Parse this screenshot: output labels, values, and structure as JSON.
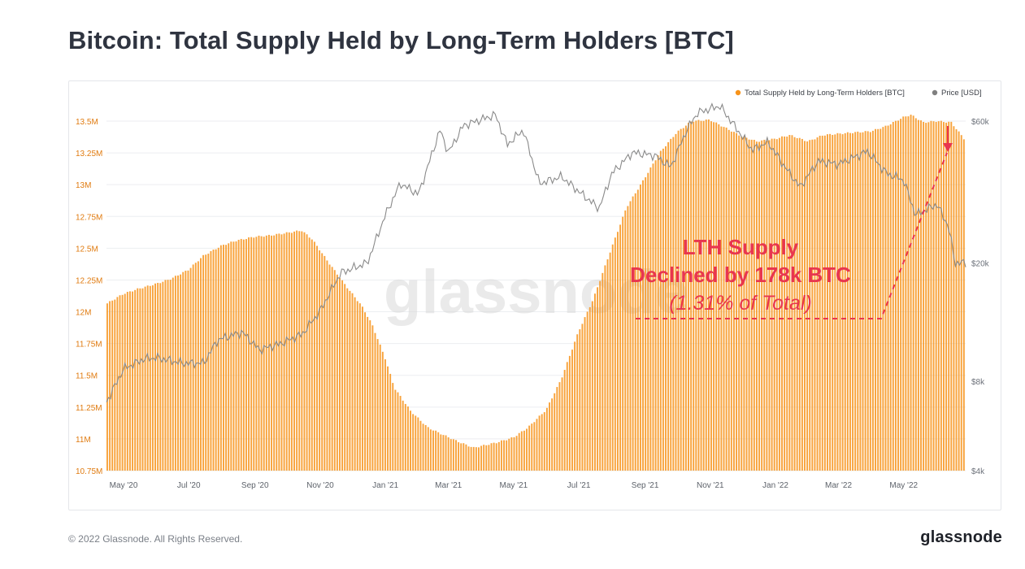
{
  "page": {
    "title": "Bitcoin: Total Supply Held by Long-Term Holders [BTC]",
    "footer": "© 2022 Glassnode. All Rights Reserved.",
    "logo": "glassnode"
  },
  "chart_data": {
    "type": "bar",
    "title": "Bitcoin: Total Supply Held by Long-Term Holders [BTC]",
    "watermark": "glassnode",
    "legend_position": "top-right",
    "grid": true,
    "colors": {
      "supply": "#f7931a",
      "price": "#7f7f7f",
      "annotation": "#e8364f",
      "text_left_axis": "#e07b10"
    },
    "x_axis": {
      "ticks": [
        "May '20",
        "Jul '20",
        "Sep '20",
        "Nov '20",
        "Jan '21",
        "Mar '21",
        "May '21",
        "Jul '21",
        "Sep '21",
        "Nov '21",
        "Jan '22",
        "Mar '22",
        "May '22"
      ],
      "range": [
        "2020-04-15",
        "2022-06-28"
      ]
    },
    "y_left": {
      "ticks": [
        "10.75M",
        "11M",
        "11.25M",
        "11.5M",
        "11.75M",
        "12M",
        "12.25M",
        "12.5M",
        "12.75M",
        "13M",
        "13.25M",
        "13.5M"
      ],
      "range": [
        10.75,
        13.5
      ],
      "unit": "M BTC"
    },
    "y_right": {
      "ticks": [
        "$4k",
        "$8k",
        "$20k",
        "$60k"
      ],
      "scale": "log",
      "range": [
        4000,
        60000
      ]
    },
    "series": [
      {
        "name": "Total Supply Held by Long-Term Holders [BTC]",
        "kind": "bar",
        "axis": "left",
        "points": [
          [
            "2020-04-15",
            12.06
          ],
          [
            "2020-05-01",
            12.14
          ],
          [
            "2020-05-15",
            12.18
          ],
          [
            "2020-06-01",
            12.22
          ],
          [
            "2020-06-15",
            12.26
          ],
          [
            "2020-07-01",
            12.33
          ],
          [
            "2020-07-15",
            12.44
          ],
          [
            "2020-08-01",
            12.52
          ],
          [
            "2020-08-15",
            12.56
          ],
          [
            "2020-09-01",
            12.59
          ],
          [
            "2020-09-15",
            12.6
          ],
          [
            "2020-10-01",
            12.62
          ],
          [
            "2020-10-15",
            12.64
          ],
          [
            "2020-10-25",
            12.57
          ],
          [
            "2020-11-10",
            12.38
          ],
          [
            "2020-11-25",
            12.21
          ],
          [
            "2020-12-10",
            12.05
          ],
          [
            "2020-12-20",
            11.9
          ],
          [
            "2021-01-01",
            11.64
          ],
          [
            "2021-01-10",
            11.4
          ],
          [
            "2021-01-25",
            11.22
          ],
          [
            "2021-02-10",
            11.09
          ],
          [
            "2021-02-25",
            11.03
          ],
          [
            "2021-03-10",
            10.98
          ],
          [
            "2021-03-25",
            10.93
          ],
          [
            "2021-04-15",
            10.97
          ],
          [
            "2021-05-01",
            11.01
          ],
          [
            "2021-05-15",
            11.09
          ],
          [
            "2021-06-01",
            11.23
          ],
          [
            "2021-06-15",
            11.47
          ],
          [
            "2021-07-01",
            11.84
          ],
          [
            "2021-07-15",
            12.1
          ],
          [
            "2021-08-01",
            12.5
          ],
          [
            "2021-08-15",
            12.82
          ],
          [
            "2021-09-01",
            13.05
          ],
          [
            "2021-09-15",
            13.25
          ],
          [
            "2021-10-01",
            13.41
          ],
          [
            "2021-10-15",
            13.5
          ],
          [
            "2021-11-01",
            13.51
          ],
          [
            "2021-11-15",
            13.45
          ],
          [
            "2021-12-01",
            13.38
          ],
          [
            "2021-12-15",
            13.34
          ],
          [
            "2022-01-01",
            13.36
          ],
          [
            "2022-01-15",
            13.39
          ],
          [
            "2022-02-01",
            13.34
          ],
          [
            "2022-02-15",
            13.39
          ],
          [
            "2022-03-01",
            13.4
          ],
          [
            "2022-03-15",
            13.41
          ],
          [
            "2022-04-01",
            13.42
          ],
          [
            "2022-04-15",
            13.46
          ],
          [
            "2022-05-01",
            13.53
          ],
          [
            "2022-05-08",
            13.55
          ],
          [
            "2022-05-20",
            13.49
          ],
          [
            "2022-06-01",
            13.5
          ],
          [
            "2022-06-15",
            13.49
          ],
          [
            "2022-06-28",
            13.35
          ]
        ]
      },
      {
        "name": "Price [USD]",
        "kind": "line",
        "axis": "right",
        "points": [
          [
            "2020-04-15",
            6800
          ],
          [
            "2020-05-01",
            8800
          ],
          [
            "2020-05-20",
            9500
          ],
          [
            "2020-06-01",
            9600
          ],
          [
            "2020-06-25",
            9200
          ],
          [
            "2020-07-15",
            9200
          ],
          [
            "2020-07-28",
            11000
          ],
          [
            "2020-08-20",
            11700
          ],
          [
            "2020-09-05",
            10200
          ],
          [
            "2020-09-25",
            10700
          ],
          [
            "2020-10-15",
            11500
          ],
          [
            "2020-11-01",
            13800
          ],
          [
            "2020-11-20",
            18500
          ],
          [
            "2020-12-15",
            20000
          ],
          [
            "2021-01-01",
            29000
          ],
          [
            "2021-01-15",
            37000
          ],
          [
            "2021-02-01",
            34000
          ],
          [
            "2021-02-21",
            56000
          ],
          [
            "2021-03-01",
            47000
          ],
          [
            "2021-03-15",
            58000
          ],
          [
            "2021-04-14",
            63000
          ],
          [
            "2021-04-25",
            50000
          ],
          [
            "2021-05-10",
            56000
          ],
          [
            "2021-05-25",
            37000
          ],
          [
            "2021-06-15",
            39000
          ],
          [
            "2021-06-30",
            35000
          ],
          [
            "2021-07-20",
            30500
          ],
          [
            "2021-08-01",
            40000
          ],
          [
            "2021-08-20",
            47000
          ],
          [
            "2021-09-10",
            46000
          ],
          [
            "2021-09-25",
            42000
          ],
          [
            "2021-10-10",
            56000
          ],
          [
            "2021-10-20",
            64000
          ],
          [
            "2021-11-10",
            67500
          ],
          [
            "2021-11-25",
            57000
          ],
          [
            "2021-12-10",
            48000
          ],
          [
            "2021-12-25",
            51000
          ],
          [
            "2022-01-10",
            42000
          ],
          [
            "2022-01-24",
            36000
          ],
          [
            "2022-02-10",
            44000
          ],
          [
            "2022-03-01",
            43000
          ],
          [
            "2022-03-28",
            47500
          ],
          [
            "2022-04-15",
            40000
          ],
          [
            "2022-05-01",
            38000
          ],
          [
            "2022-05-12",
            29000
          ],
          [
            "2022-06-01",
            31500
          ],
          [
            "2022-06-12",
            26500
          ],
          [
            "2022-06-18",
            20000
          ],
          [
            "2022-06-28",
            20000
          ]
        ]
      }
    ],
    "annotation": {
      "line1": "LTH Supply",
      "line2": "Declined by 178k BTC",
      "line3": "(1.31% of Total)"
    }
  }
}
